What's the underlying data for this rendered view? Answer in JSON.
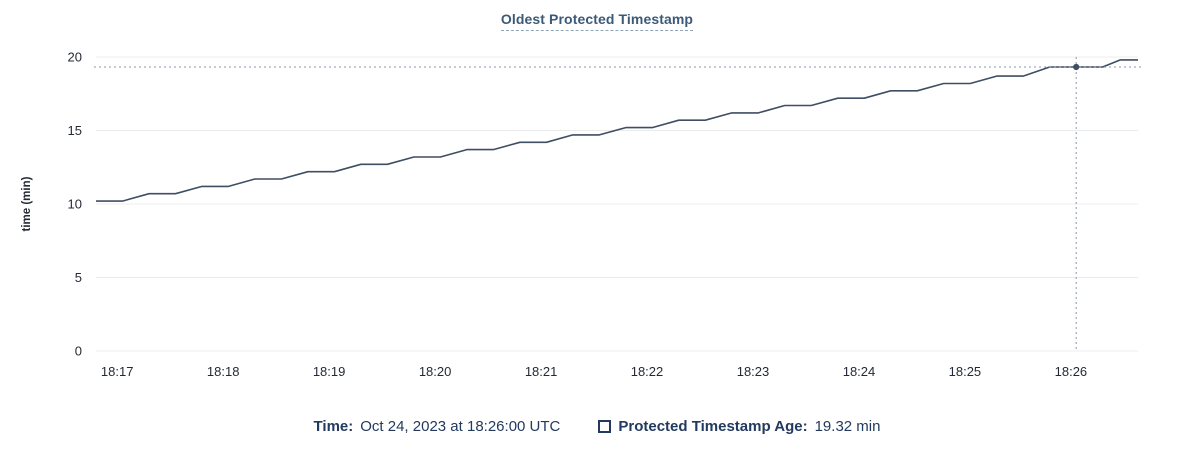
{
  "title": "Oldest Protected Timestamp",
  "colors": {
    "line": "#3f4e63",
    "grid": "#ececec",
    "tick_text": "#242a35",
    "crosshair": "#8a97a5",
    "title": "#3b5a78",
    "footer_text": "#223a5e"
  },
  "chart_data": {
    "type": "line",
    "title": "Oldest Protected Timestamp",
    "xlabel": "",
    "ylabel": "time (min)",
    "ylim": [
      0,
      20
    ],
    "yticks": [
      0,
      5,
      10,
      15,
      20
    ],
    "grid": "horizontal",
    "legend_position": "bottom",
    "x_domain_seconds_from_1817": [
      -12,
      578
    ],
    "xticks": [
      {
        "t": 0,
        "label": "18:17"
      },
      {
        "t": 60,
        "label": "18:18"
      },
      {
        "t": 120,
        "label": "18:19"
      },
      {
        "t": 180,
        "label": "18:20"
      },
      {
        "t": 240,
        "label": "18:21"
      },
      {
        "t": 300,
        "label": "18:22"
      },
      {
        "t": 360,
        "label": "18:23"
      },
      {
        "t": 420,
        "label": "18:24"
      },
      {
        "t": 480,
        "label": "18:25"
      },
      {
        "t": 540,
        "label": "18:26"
      }
    ],
    "series": [
      {
        "name": "Protected Timestamp Age",
        "points": [
          [
            -12,
            10.2
          ],
          [
            3,
            10.2
          ],
          [
            18,
            10.7
          ],
          [
            33,
            10.7
          ],
          [
            48,
            11.2
          ],
          [
            63,
            11.2
          ],
          [
            78,
            11.7
          ],
          [
            93,
            11.7
          ],
          [
            108,
            12.2
          ],
          [
            123,
            12.2
          ],
          [
            138,
            12.7
          ],
          [
            153,
            12.7
          ],
          [
            168,
            13.2
          ],
          [
            183,
            13.2
          ],
          [
            198,
            13.7
          ],
          [
            213,
            13.7
          ],
          [
            228,
            14.2
          ],
          [
            243,
            14.2
          ],
          [
            258,
            14.7
          ],
          [
            273,
            14.7
          ],
          [
            288,
            15.2
          ],
          [
            303,
            15.2
          ],
          [
            318,
            15.7
          ],
          [
            333,
            15.7
          ],
          [
            348,
            16.2
          ],
          [
            363,
            16.2
          ],
          [
            378,
            16.7
          ],
          [
            393,
            16.7
          ],
          [
            408,
            17.2
          ],
          [
            423,
            17.2
          ],
          [
            438,
            17.7
          ],
          [
            453,
            17.7
          ],
          [
            468,
            18.2
          ],
          [
            483,
            18.2
          ],
          [
            498,
            18.7
          ],
          [
            513,
            18.7
          ],
          [
            528,
            19.32
          ],
          [
            558,
            19.32
          ],
          [
            568,
            19.8
          ],
          [
            578,
            19.8
          ]
        ]
      }
    ],
    "hover": {
      "t": 543,
      "value": 19.32,
      "time_label": "Oct 24, 2023 at 18:26:00 UTC",
      "value_label": "19.32 min"
    }
  },
  "footer": {
    "time_label": "Time:",
    "time_value": "Oct 24, 2023 at 18:26:00 UTC",
    "metric_label": "Protected Timestamp Age:",
    "metric_value": "19.32 min"
  }
}
